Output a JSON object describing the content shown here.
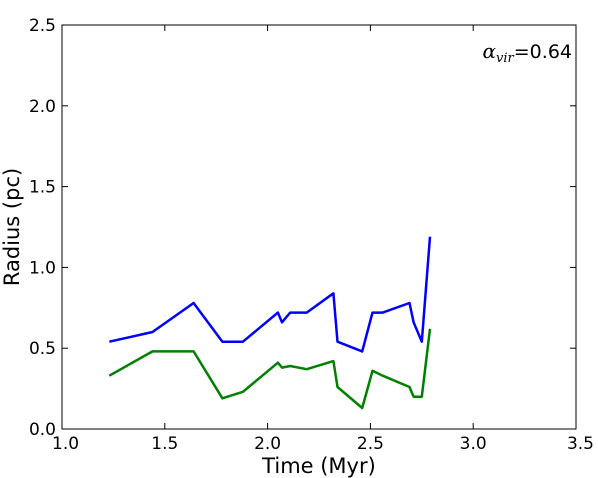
{
  "chart_data": {
    "type": "line",
    "xlabel": "Time (Myr)",
    "ylabel": "Radius (pc)",
    "xlim": [
      1.0,
      3.5
    ],
    "ylim": [
      0.0,
      2.5
    ],
    "xticks": [
      "1.0",
      "1.5",
      "2.0",
      "2.5",
      "3.0",
      "3.5"
    ],
    "yticks": [
      "0.0",
      "0.5",
      "1.0",
      "1.5",
      "2.0",
      "2.5"
    ],
    "grid": false,
    "legend": "none",
    "annotation": {
      "symbol": "α",
      "subscript": "vir",
      "value": "=0.64",
      "placement": "top-right"
    },
    "series": [
      {
        "color": "#0000ff",
        "x": [
          1.23,
          1.44,
          1.64,
          1.78,
          1.88,
          2.05,
          2.07,
          2.11,
          2.19,
          2.32,
          2.34,
          2.46,
          2.51,
          2.56,
          2.69,
          2.71,
          2.75,
          2.79
        ],
        "y": [
          0.54,
          0.6,
          0.78,
          0.54,
          0.54,
          0.72,
          0.66,
          0.72,
          0.72,
          0.84,
          0.54,
          0.48,
          0.72,
          0.72,
          0.78,
          0.66,
          0.54,
          1.19
        ]
      },
      {
        "color": "#008000",
        "x": [
          1.23,
          1.44,
          1.64,
          1.78,
          1.88,
          2.05,
          2.07,
          2.11,
          2.19,
          2.32,
          2.34,
          2.46,
          2.51,
          2.56,
          2.69,
          2.71,
          2.75,
          2.79
        ],
        "y": [
          0.33,
          0.48,
          0.48,
          0.19,
          0.23,
          0.41,
          0.38,
          0.39,
          0.37,
          0.42,
          0.26,
          0.13,
          0.36,
          0.33,
          0.26,
          0.2,
          0.2,
          0.62
        ]
      }
    ]
  }
}
